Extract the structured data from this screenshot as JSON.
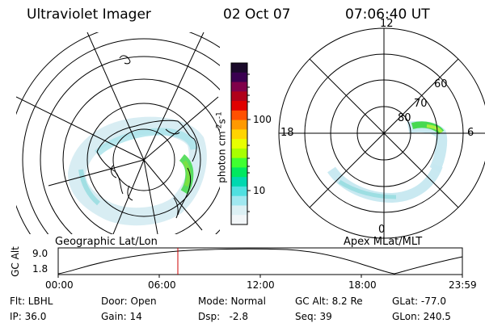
{
  "header": {
    "title": "Ultraviolet Imager",
    "date": "02 Oct 07",
    "time": "07:06:40 UT"
  },
  "left_panel": {
    "caption": "Geographic Lat/Lon"
  },
  "right_panel": {
    "caption": "Apex MLat/MLT",
    "mlt_labels": [
      "12",
      "18",
      "6",
      "0"
    ],
    "lat_labels": [
      "60",
      "70",
      "80"
    ]
  },
  "colorbar": {
    "unit_label": "photon cm",
    "unit_sup1": "-2",
    "unit_mid": "s",
    "unit_sup2": "-1",
    "ticks": [
      "100",
      "10"
    ],
    "colors": [
      "#1a0a2a",
      "#3a0050",
      "#80004a",
      "#b0001a",
      "#e00000",
      "#ff5000",
      "#ff9900",
      "#ffd400",
      "#e8ff00",
      "#a8ff00",
      "#40ff30",
      "#00e860",
      "#00d8b0",
      "#50e0e0",
      "#a0e8f0",
      "#dcf0f4",
      "#f2f6f8"
    ]
  },
  "orbit_plot": {
    "ylabel": "GC Alt",
    "yticks": [
      "9.0",
      "1.8"
    ],
    "xticks": [
      "00:00",
      "06:00",
      "12:00",
      "18:00",
      "23:59"
    ],
    "current_time_fraction": 0.296
  },
  "status": {
    "flt": "Flt: LBHL",
    "ip": "IP: 36.0",
    "door": "Door: Open",
    "gain": "Gain: 14",
    "mode": "Mode: Normal",
    "dsp": "Dsp:   -2.8",
    "gc_alt": "GC Alt: 8.2 Re",
    "seq": "Seq: 39",
    "glat": "GLat: -77.0",
    "glon": "GLon: 240.5"
  },
  "colors": {
    "aurora_light": "#c8e6ee",
    "aurora_mid": "#7fd8d8",
    "aurora_bright": "#40d848",
    "marker": "#cc0000"
  }
}
